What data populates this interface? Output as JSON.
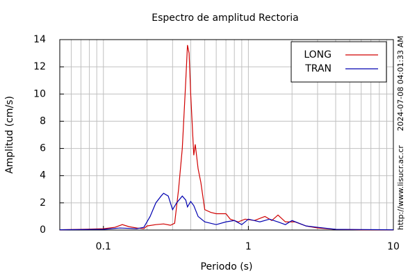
{
  "chart_data": {
    "type": "line",
    "title": "Espectro de amplitud Rectoria",
    "xlabel": "Periodo (s)",
    "ylabel": "Amplitud (cm/s)",
    "xscale": "log",
    "xlim": [
      0.05,
      10
    ],
    "ylim": [
      0,
      14
    ],
    "xticks": [
      0.1,
      1,
      10
    ],
    "x_minor_ticks": [
      0.06,
      0.07,
      0.08,
      0.09,
      0.2,
      0.3,
      0.4,
      0.5,
      0.6,
      0.7,
      0.8,
      0.9,
      2,
      3,
      4,
      5,
      6,
      7,
      8,
      9
    ],
    "yticks": [
      0,
      2,
      4,
      6,
      8,
      10,
      12,
      14
    ],
    "grid": true,
    "legend": "upper right",
    "annotations": [
      "2024-07-08 04:01:33 AM",
      "http://www.lisucr.ac.cr"
    ],
    "series": [
      {
        "name": "LONG",
        "color": "#d00000",
        "x": [
          0.05,
          0.07,
          0.1,
          0.12,
          0.135,
          0.15,
          0.17,
          0.19,
          0.2,
          0.23,
          0.26,
          0.29,
          0.31,
          0.33,
          0.35,
          0.37,
          0.38,
          0.39,
          0.4,
          0.42,
          0.43,
          0.45,
          0.47,
          0.5,
          0.55,
          0.6,
          0.7,
          0.75,
          0.85,
          0.95,
          1.1,
          1.3,
          1.45,
          1.6,
          1.8,
          2.1,
          2.5,
          3,
          4,
          6,
          10
        ],
        "values": [
          0.02,
          0.05,
          0.1,
          0.2,
          0.4,
          0.25,
          0.15,
          0.1,
          0.3,
          0.4,
          0.45,
          0.35,
          0.5,
          3,
          6,
          11,
          13.6,
          13,
          10,
          5.5,
          6.3,
          4.5,
          3.5,
          1.5,
          1.3,
          1.2,
          1.2,
          0.8,
          0.6,
          0.8,
          0.7,
          1.0,
          0.7,
          1.1,
          0.6,
          0.6,
          0.3,
          0.15,
          0.05,
          0.02,
          0.02
        ]
      },
      {
        "name": "TRAN",
        "color": "#0000b0",
        "x": [
          0.05,
          0.1,
          0.13,
          0.17,
          0.19,
          0.21,
          0.23,
          0.25,
          0.26,
          0.28,
          0.3,
          0.32,
          0.35,
          0.37,
          0.38,
          0.4,
          0.42,
          0.45,
          0.5,
          0.6,
          0.7,
          0.8,
          0.9,
          1.0,
          1.2,
          1.4,
          1.6,
          1.8,
          2.0,
          2.5,
          3,
          4,
          10
        ],
        "values": [
          0.02,
          0.05,
          0.15,
          0.1,
          0.2,
          1.0,
          2.0,
          2.5,
          2.7,
          2.5,
          1.5,
          2.0,
          2.5,
          2.2,
          1.7,
          2.1,
          1.8,
          1.0,
          0.6,
          0.4,
          0.6,
          0.7,
          0.4,
          0.8,
          0.6,
          0.8,
          0.6,
          0.4,
          0.7,
          0.3,
          0.2,
          0.05,
          0.02
        ]
      }
    ]
  }
}
